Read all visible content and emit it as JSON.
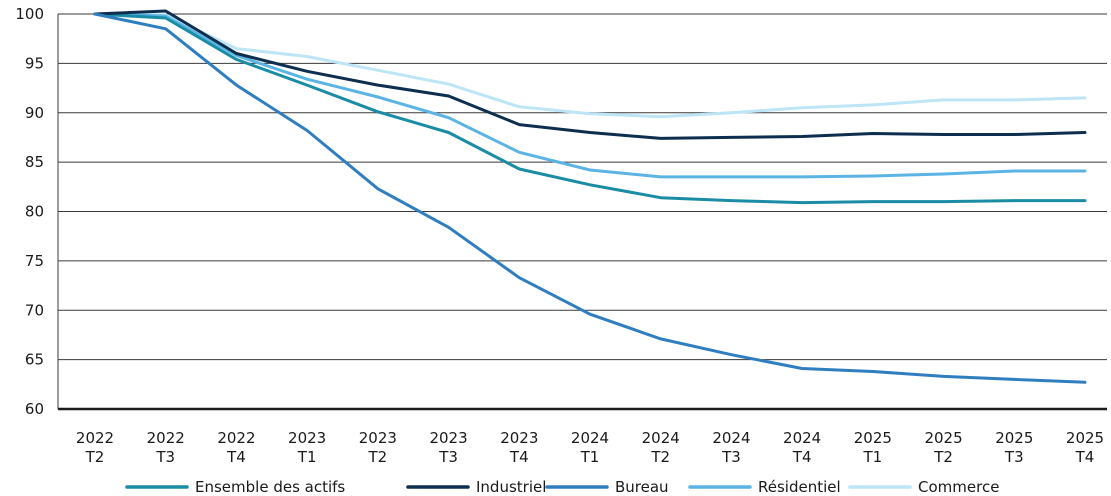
{
  "chart_data": {
    "type": "line",
    "title": "",
    "xlabel": "",
    "ylabel": "",
    "ylim": [
      60,
      100
    ],
    "yticks": [
      60,
      65,
      70,
      75,
      80,
      85,
      90,
      95,
      100
    ],
    "grid": "horizontal",
    "legend_position": "bottom",
    "categories": [
      [
        "2022",
        "T2"
      ],
      [
        "2022",
        "T3"
      ],
      [
        "2022",
        "T4"
      ],
      [
        "2023",
        "T1"
      ],
      [
        "2023",
        "T2"
      ],
      [
        "2023",
        "T3"
      ],
      [
        "2023",
        "T4"
      ],
      [
        "2024",
        "T1"
      ],
      [
        "2024",
        "T2"
      ],
      [
        "2024",
        "T3"
      ],
      [
        "2024",
        "T4"
      ],
      [
        "2025",
        "T1"
      ],
      [
        "2025",
        "T2"
      ],
      [
        "2025",
        "T3"
      ],
      [
        "2025",
        "T4"
      ]
    ],
    "series": [
      {
        "name": "Ensemble des actifs",
        "color": "#1a8ca6",
        "values": [
          100,
          99.6,
          95.4,
          92.8,
          90.1,
          88.0,
          84.3,
          82.7,
          81.4,
          81.1,
          80.9,
          81.0,
          81.0,
          81.1,
          81.1
        ]
      },
      {
        "name": "Industriel",
        "color": "#0d2e4e",
        "values": [
          100,
          100.3,
          96.0,
          94.2,
          92.8,
          91.7,
          88.8,
          88.0,
          87.4,
          87.5,
          87.6,
          87.9,
          87.8,
          87.8,
          88.0
        ]
      },
      {
        "name": "Bureau",
        "color": "#2f7ec0",
        "values": [
          100,
          98.5,
          92.8,
          88.2,
          82.3,
          78.4,
          73.3,
          69.6,
          67.1,
          65.5,
          64.1,
          63.8,
          63.3,
          63.0,
          62.7
        ]
      },
      {
        "name": "Résidentiel",
        "color": "#5bb4e3",
        "values": [
          100,
          99.8,
          95.8,
          93.4,
          91.6,
          89.5,
          86.0,
          84.2,
          83.5,
          83.5,
          83.5,
          83.6,
          83.8,
          84.1,
          84.1
        ]
      },
      {
        "name": "Commerce",
        "color": "#bde5f6",
        "values": [
          100,
          99.9,
          96.5,
          95.7,
          94.3,
          92.9,
          90.6,
          89.9,
          89.6,
          90.0,
          90.5,
          90.8,
          91.3,
          91.3,
          91.5
        ]
      }
    ]
  }
}
